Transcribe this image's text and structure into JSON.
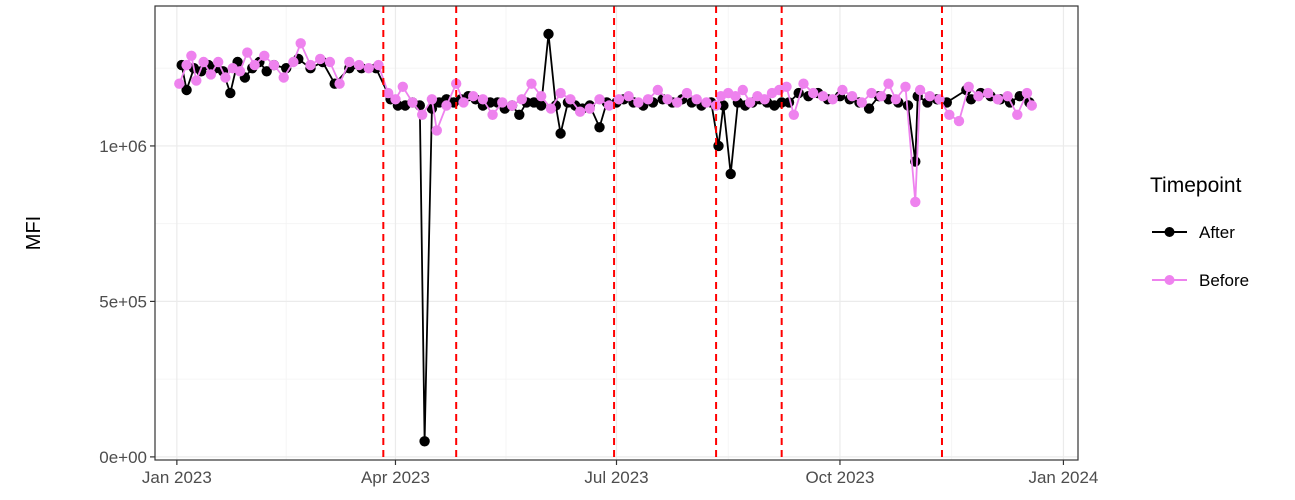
{
  "chart_data": {
    "type": "line",
    "title": "",
    "xlabel": "",
    "ylabel": "MFI",
    "x_ticks": [
      "Jan 2023",
      "Apr 2023",
      "Jul 2023",
      "Oct 2023",
      "Jan 2024"
    ],
    "x_tick_dates": [
      "2023-01-01",
      "2023-04-01",
      "2023-07-01",
      "2023-10-01",
      "2024-01-01"
    ],
    "xlim": [
      "2022-12-23",
      "2024-01-07"
    ],
    "y_ticks": [
      "0e+00",
      "5e+05",
      "1e+06"
    ],
    "y_tick_values": [
      0,
      500000,
      1000000
    ],
    "ylim": [
      -10000,
      1450000
    ],
    "grid": true,
    "legend": {
      "title": "Timepoint",
      "placement": "right",
      "entries": [
        "After",
        "Before"
      ]
    },
    "vlines": {
      "style": "dashed",
      "color": "#ff0000",
      "dates": [
        "2023-03-27",
        "2023-04-26",
        "2023-06-30",
        "2023-08-11",
        "2023-09-07",
        "2023-11-12"
      ]
    },
    "series": [
      {
        "name": "After",
        "color": "#000000",
        "points": [
          [
            "2023-01-03",
            1260000
          ],
          [
            "2023-01-05",
            1180000
          ],
          [
            "2023-01-08",
            1250000
          ],
          [
            "2023-01-11",
            1240000
          ],
          [
            "2023-01-14",
            1260000
          ],
          [
            "2023-01-17",
            1250000
          ],
          [
            "2023-01-20",
            1240000
          ],
          [
            "2023-01-23",
            1170000
          ],
          [
            "2023-01-26",
            1270000
          ],
          [
            "2023-01-29",
            1220000
          ],
          [
            "2023-02-01",
            1250000
          ],
          [
            "2023-02-04",
            1270000
          ],
          [
            "2023-02-07",
            1240000
          ],
          [
            "2023-02-10",
            1260000
          ],
          [
            "2023-02-15",
            1250000
          ],
          [
            "2023-02-20",
            1280000
          ],
          [
            "2023-02-25",
            1250000
          ],
          [
            "2023-03-02",
            1270000
          ],
          [
            "2023-03-07",
            1200000
          ],
          [
            "2023-03-13",
            1250000
          ],
          [
            "2023-03-18",
            1250000
          ],
          [
            "2023-03-24",
            1250000
          ],
          [
            "2023-03-30",
            1150000
          ],
          [
            "2023-04-02",
            1130000
          ],
          [
            "2023-04-05",
            1130000
          ],
          [
            "2023-04-08",
            1140000
          ],
          [
            "2023-04-11",
            1130000
          ],
          [
            "2023-04-13",
            50000
          ],
          [
            "2023-04-16",
            1120000
          ],
          [
            "2023-04-19",
            1140000
          ],
          [
            "2023-04-22",
            1150000
          ],
          [
            "2023-04-25",
            1140000
          ],
          [
            "2023-04-28",
            1150000
          ],
          [
            "2023-05-01",
            1160000
          ],
          [
            "2023-05-04",
            1150000
          ],
          [
            "2023-05-07",
            1130000
          ],
          [
            "2023-05-10",
            1140000
          ],
          [
            "2023-05-13",
            1140000
          ],
          [
            "2023-05-16",
            1120000
          ],
          [
            "2023-05-19",
            1130000
          ],
          [
            "2023-05-22",
            1100000
          ],
          [
            "2023-05-25",
            1140000
          ],
          [
            "2023-05-28",
            1140000
          ],
          [
            "2023-05-31",
            1130000
          ],
          [
            "2023-06-03",
            1360000
          ],
          [
            "2023-06-06",
            1130000
          ],
          [
            "2023-06-08",
            1040000
          ],
          [
            "2023-06-11",
            1140000
          ],
          [
            "2023-06-14",
            1130000
          ],
          [
            "2023-06-17",
            1120000
          ],
          [
            "2023-06-20",
            1130000
          ],
          [
            "2023-06-24",
            1060000
          ],
          [
            "2023-06-27",
            1140000
          ],
          [
            "2023-07-01",
            1140000
          ],
          [
            "2023-07-04",
            1150000
          ],
          [
            "2023-07-08",
            1140000
          ],
          [
            "2023-07-12",
            1130000
          ],
          [
            "2023-07-16",
            1140000
          ],
          [
            "2023-07-20",
            1150000
          ],
          [
            "2023-07-24",
            1140000
          ],
          [
            "2023-07-28",
            1150000
          ],
          [
            "2023-08-01",
            1140000
          ],
          [
            "2023-08-05",
            1130000
          ],
          [
            "2023-08-09",
            1140000
          ],
          [
            "2023-08-12",
            1000000
          ],
          [
            "2023-08-14",
            1130000
          ],
          [
            "2023-08-17",
            910000
          ],
          [
            "2023-08-20",
            1140000
          ],
          [
            "2023-08-23",
            1130000
          ],
          [
            "2023-08-26",
            1140000
          ],
          [
            "2023-08-29",
            1150000
          ],
          [
            "2023-09-01",
            1140000
          ],
          [
            "2023-09-04",
            1130000
          ],
          [
            "2023-09-07",
            1140000
          ],
          [
            "2023-09-10",
            1140000
          ],
          [
            "2023-09-14",
            1170000
          ],
          [
            "2023-09-18",
            1160000
          ],
          [
            "2023-09-22",
            1170000
          ],
          [
            "2023-09-26",
            1150000
          ],
          [
            "2023-10-01",
            1160000
          ],
          [
            "2023-10-05",
            1150000
          ],
          [
            "2023-10-09",
            1140000
          ],
          [
            "2023-10-13",
            1120000
          ],
          [
            "2023-10-17",
            1160000
          ],
          [
            "2023-10-21",
            1150000
          ],
          [
            "2023-10-25",
            1140000
          ],
          [
            "2023-10-29",
            1130000
          ],
          [
            "2023-11-01",
            950000
          ],
          [
            "2023-11-02",
            1160000
          ],
          [
            "2023-11-06",
            1140000
          ],
          [
            "2023-11-10",
            1150000
          ],
          [
            "2023-11-14",
            1140000
          ],
          [
            "2023-11-22",
            1180000
          ],
          [
            "2023-11-24",
            1150000
          ],
          [
            "2023-11-28",
            1170000
          ],
          [
            "2023-12-02",
            1160000
          ],
          [
            "2023-12-06",
            1150000
          ],
          [
            "2023-12-10",
            1140000
          ],
          [
            "2023-12-14",
            1160000
          ],
          [
            "2023-12-18",
            1140000
          ]
        ]
      },
      {
        "name": "Before",
        "color": "#ee82ee",
        "points": [
          [
            "2023-01-02",
            1200000
          ],
          [
            "2023-01-05",
            1260000
          ],
          [
            "2023-01-07",
            1290000
          ],
          [
            "2023-01-09",
            1210000
          ],
          [
            "2023-01-12",
            1270000
          ],
          [
            "2023-01-15",
            1230000
          ],
          [
            "2023-01-18",
            1270000
          ],
          [
            "2023-01-21",
            1220000
          ],
          [
            "2023-01-24",
            1250000
          ],
          [
            "2023-01-27",
            1240000
          ],
          [
            "2023-01-30",
            1300000
          ],
          [
            "2023-02-02",
            1260000
          ],
          [
            "2023-02-06",
            1290000
          ],
          [
            "2023-02-10",
            1260000
          ],
          [
            "2023-02-14",
            1220000
          ],
          [
            "2023-02-18",
            1270000
          ],
          [
            "2023-02-21",
            1330000
          ],
          [
            "2023-02-25",
            1260000
          ],
          [
            "2023-03-01",
            1280000
          ],
          [
            "2023-03-05",
            1270000
          ],
          [
            "2023-03-09",
            1200000
          ],
          [
            "2023-03-13",
            1270000
          ],
          [
            "2023-03-17",
            1260000
          ],
          [
            "2023-03-21",
            1250000
          ],
          [
            "2023-03-25",
            1260000
          ],
          [
            "2023-03-29",
            1170000
          ],
          [
            "2023-04-01",
            1150000
          ],
          [
            "2023-04-04",
            1190000
          ],
          [
            "2023-04-08",
            1140000
          ],
          [
            "2023-04-12",
            1100000
          ],
          [
            "2023-04-16",
            1150000
          ],
          [
            "2023-04-18",
            1050000
          ],
          [
            "2023-04-22",
            1130000
          ],
          [
            "2023-04-26",
            1200000
          ],
          [
            "2023-04-29",
            1140000
          ],
          [
            "2023-05-03",
            1160000
          ],
          [
            "2023-05-07",
            1150000
          ],
          [
            "2023-05-11",
            1100000
          ],
          [
            "2023-05-15",
            1140000
          ],
          [
            "2023-05-19",
            1130000
          ],
          [
            "2023-05-23",
            1150000
          ],
          [
            "2023-05-27",
            1200000
          ],
          [
            "2023-05-31",
            1160000
          ],
          [
            "2023-06-04",
            1120000
          ],
          [
            "2023-06-08",
            1170000
          ],
          [
            "2023-06-12",
            1150000
          ],
          [
            "2023-06-16",
            1110000
          ],
          [
            "2023-06-20",
            1120000
          ],
          [
            "2023-06-24",
            1150000
          ],
          [
            "2023-06-28",
            1130000
          ],
          [
            "2023-07-02",
            1150000
          ],
          [
            "2023-07-06",
            1160000
          ],
          [
            "2023-07-10",
            1140000
          ],
          [
            "2023-07-14",
            1150000
          ],
          [
            "2023-07-18",
            1180000
          ],
          [
            "2023-07-22",
            1150000
          ],
          [
            "2023-07-26",
            1140000
          ],
          [
            "2023-07-30",
            1170000
          ],
          [
            "2023-08-03",
            1150000
          ],
          [
            "2023-08-07",
            1140000
          ],
          [
            "2023-08-11",
            1130000
          ],
          [
            "2023-08-13",
            1160000
          ],
          [
            "2023-08-16",
            1170000
          ],
          [
            "2023-08-19",
            1160000
          ],
          [
            "2023-08-22",
            1180000
          ],
          [
            "2023-08-25",
            1140000
          ],
          [
            "2023-08-28",
            1160000
          ],
          [
            "2023-08-31",
            1150000
          ],
          [
            "2023-09-03",
            1170000
          ],
          [
            "2023-09-06",
            1180000
          ],
          [
            "2023-09-09",
            1190000
          ],
          [
            "2023-09-12",
            1100000
          ],
          [
            "2023-09-16",
            1200000
          ],
          [
            "2023-09-20",
            1170000
          ],
          [
            "2023-09-24",
            1160000
          ],
          [
            "2023-09-28",
            1150000
          ],
          [
            "2023-10-02",
            1180000
          ],
          [
            "2023-10-06",
            1160000
          ],
          [
            "2023-10-10",
            1140000
          ],
          [
            "2023-10-14",
            1170000
          ],
          [
            "2023-10-18",
            1160000
          ],
          [
            "2023-10-21",
            1200000
          ],
          [
            "2023-10-24",
            1150000
          ],
          [
            "2023-10-28",
            1190000
          ],
          [
            "2023-11-01",
            820000
          ],
          [
            "2023-11-03",
            1180000
          ],
          [
            "2023-11-07",
            1160000
          ],
          [
            "2023-11-11",
            1150000
          ],
          [
            "2023-11-15",
            1100000
          ],
          [
            "2023-11-19",
            1080000
          ],
          [
            "2023-11-23",
            1190000
          ],
          [
            "2023-11-27",
            1160000
          ],
          [
            "2023-12-01",
            1170000
          ],
          [
            "2023-12-05",
            1150000
          ],
          [
            "2023-12-09",
            1160000
          ],
          [
            "2023-12-13",
            1100000
          ],
          [
            "2023-12-17",
            1170000
          ],
          [
            "2023-12-19",
            1130000
          ]
        ]
      }
    ]
  }
}
